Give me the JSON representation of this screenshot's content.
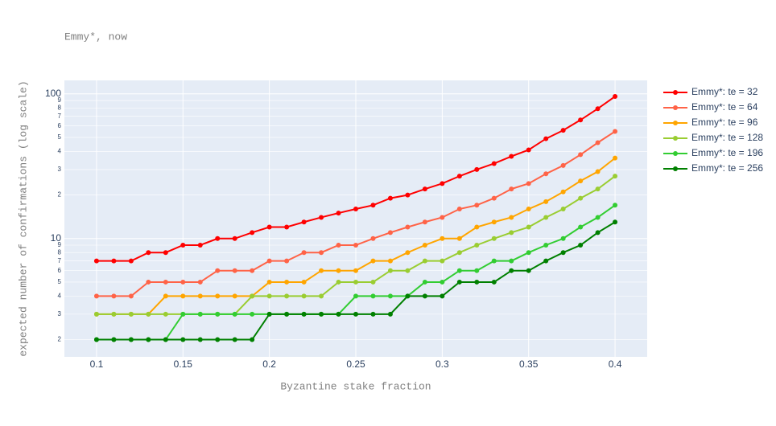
{
  "chart_data": {
    "type": "line",
    "title": "Emmy*, now",
    "x_label": "Byzantine stake fraction",
    "y_label": "expected number of confirmations (log scale)",
    "log_y": true,
    "grid": true,
    "legend_position": "right",
    "x": [
      0.1,
      0.11,
      0.12,
      0.13,
      0.14,
      0.15,
      0.16,
      0.17,
      0.18,
      0.19,
      0.2,
      0.21,
      0.22,
      0.23,
      0.24,
      0.25,
      0.26,
      0.27,
      0.28,
      0.29,
      0.3,
      0.31,
      0.32,
      0.33,
      0.34,
      0.35,
      0.36,
      0.37,
      0.38,
      0.39,
      0.4
    ],
    "xlim": [
      0.0814,
      0.4186
    ],
    "xticks": [
      0.1,
      0.15,
      0.2,
      0.25,
      0.3,
      0.35,
      0.4
    ],
    "ylim": [
      1.52,
      124
    ],
    "yticks": [
      2,
      3,
      4,
      5,
      6,
      7,
      8,
      9,
      10,
      {
        "value": 20,
        "label": "2"
      },
      {
        "value": 30,
        "label": "3"
      },
      {
        "value": 40,
        "label": "4"
      },
      {
        "value": 50,
        "label": "5"
      },
      {
        "value": 60,
        "label": "6"
      },
      {
        "value": 70,
        "label": "7"
      },
      {
        "value": 80,
        "label": "8"
      },
      {
        "value": 90,
        "label": "9"
      },
      100
    ],
    "series": [
      {
        "name": "Emmy*: te = 32",
        "color": "#ff0000",
        "values": [
          7,
          7,
          7,
          8,
          8,
          9,
          9,
          10,
          10,
          11,
          12,
          12,
          13,
          14,
          15,
          16,
          17,
          19,
          20,
          22,
          24,
          27,
          30,
          33,
          37,
          41,
          49,
          56,
          66,
          79,
          96
        ]
      },
      {
        "name": "Emmy*: te = 64",
        "color": "#ff6347",
        "values": [
          4,
          4,
          4,
          5,
          5,
          5,
          5,
          6,
          6,
          6,
          7,
          7,
          8,
          8,
          9,
          9,
          10,
          11,
          12,
          13,
          14,
          16,
          17,
          19,
          22,
          24,
          28,
          32,
          38,
          46,
          55
        ]
      },
      {
        "name": "Emmy*: te = 96",
        "color": "#ffa500",
        "values": [
          3,
          3,
          3,
          3,
          4,
          4,
          4,
          4,
          4,
          4,
          5,
          5,
          5,
          6,
          6,
          6,
          7,
          7,
          8,
          9,
          10,
          10,
          12,
          13,
          14,
          16,
          18,
          21,
          25,
          29,
          36
        ]
      },
      {
        "name": "Emmy*: te = 128",
        "color": "#9acd32",
        "values": [
          3,
          3,
          3,
          3,
          3,
          3,
          3,
          3,
          3,
          4,
          4,
          4,
          4,
          4,
          5,
          5,
          5,
          6,
          6,
          7,
          7,
          8,
          9,
          10,
          11,
          12,
          14,
          16,
          19,
          22,
          27
        ]
      },
      {
        "name": "Emmy*: te = 196",
        "color": "#32cd32",
        "values": [
          2,
          2,
          2,
          2,
          2,
          3,
          3,
          3,
          3,
          3,
          3,
          3,
          3,
          3,
          3,
          4,
          4,
          4,
          4,
          5,
          5,
          6,
          6,
          7,
          7,
          8,
          9,
          10,
          12,
          14,
          17
        ]
      },
      {
        "name": "Emmy*: te = 256",
        "color": "#008000",
        "values": [
          2,
          2,
          2,
          2,
          2,
          2,
          2,
          2,
          2,
          2,
          3,
          3,
          3,
          3,
          3,
          3,
          3,
          3,
          4,
          4,
          4,
          5,
          5,
          5,
          6,
          6,
          7,
          8,
          9,
          11,
          13
        ]
      }
    ]
  }
}
